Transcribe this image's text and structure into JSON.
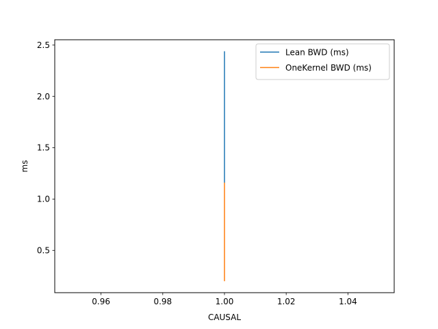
{
  "chart_data": {
    "type": "line",
    "title": "",
    "xlabel": "CAUSAL",
    "ylabel": "ms",
    "xlim": [
      0.945,
      1.055
    ],
    "ylim": [
      0.088,
      2.552
    ],
    "xticks": [
      0.96,
      0.98,
      1.0,
      1.02,
      1.04
    ],
    "xtick_labels": [
      "0.96",
      "0.98",
      "1.00",
      "1.02",
      "1.04"
    ],
    "yticks": [
      0.5,
      1.0,
      1.5,
      2.0,
      2.5
    ],
    "ytick_labels": [
      "0.5",
      "1.0",
      "1.5",
      "2.0",
      "2.5"
    ],
    "grid": false,
    "legend_position": "upper right",
    "series": [
      {
        "name": "Lean BWD (ms)",
        "color": "#1f77b4",
        "points": [
          [
            1.0,
            1.16
          ],
          [
            1.0,
            2.44
          ]
        ]
      },
      {
        "name": "OneKernel BWD (ms)",
        "color": "#ff7f0e",
        "points": [
          [
            1.0,
            0.2
          ],
          [
            1.0,
            1.16
          ]
        ]
      }
    ]
  }
}
